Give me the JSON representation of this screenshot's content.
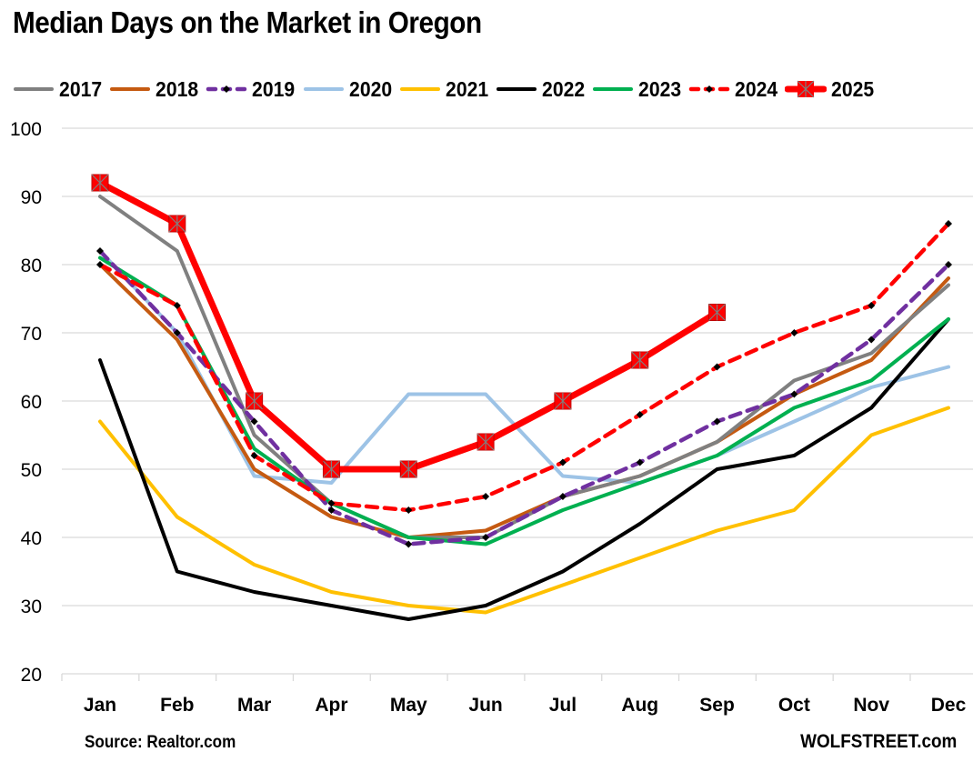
{
  "chart_data": {
    "type": "line",
    "title": "Median Days on the Market in Oregon",
    "xlabel": "",
    "ylabel": "",
    "categories": [
      "Jan",
      "Feb",
      "Mar",
      "Apr",
      "May",
      "Jun",
      "Jul",
      "Aug",
      "Sep",
      "Oct",
      "Nov",
      "Dec"
    ],
    "ylim": [
      20,
      100
    ],
    "yticks": [
      20,
      30,
      40,
      50,
      60,
      70,
      80,
      90,
      100
    ],
    "grid": true,
    "legend_position": "top",
    "series": [
      {
        "name": "2017",
        "color": "#808080",
        "style": "solid",
        "values": [
          90,
          82,
          55,
          45,
          40,
          40,
          46,
          49,
          54,
          63,
          67,
          77
        ]
      },
      {
        "name": "2018",
        "color": "#C55A11",
        "style": "solid",
        "values": [
          80,
          69,
          50,
          43,
          40,
          41,
          46,
          49,
          54,
          61,
          66,
          78
        ]
      },
      {
        "name": "2019",
        "color": "#7030A0",
        "style": "dashed-diamond",
        "values": [
          82,
          70,
          57,
          44,
          39,
          40,
          46,
          51,
          57,
          61,
          69,
          80
        ]
      },
      {
        "name": "2020",
        "color": "#9DC3E6",
        "style": "solid",
        "values": [
          82,
          70,
          49,
          48,
          61,
          61,
          49,
          48,
          52,
          57,
          62,
          65
        ]
      },
      {
        "name": "2021",
        "color": "#FFC000",
        "style": "solid",
        "values": [
          57,
          43,
          36,
          32,
          30,
          29,
          33,
          37,
          41,
          44,
          55,
          59
        ]
      },
      {
        "name": "2022",
        "color": "#000000",
        "style": "solid",
        "values": [
          66,
          35,
          32,
          30,
          28,
          30,
          35,
          42,
          50,
          52,
          59,
          72
        ]
      },
      {
        "name": "2023",
        "color": "#00B050",
        "style": "solid",
        "values": [
          81,
          74,
          53,
          45,
          40,
          39,
          44,
          48,
          52,
          59,
          63,
          72
        ]
      },
      {
        "name": "2024",
        "color": "#FF0000",
        "style": "dashed-diamond",
        "values": [
          80,
          74,
          52,
          45,
          44,
          46,
          51,
          58,
          65,
          70,
          74,
          86
        ]
      },
      {
        "name": "2025",
        "color": "#FF0000",
        "style": "thick-square-marker",
        "values": [
          92,
          86,
          60,
          50,
          50,
          54,
          60,
          66,
          73
        ]
      }
    ]
  },
  "footer": {
    "source": "Source: Realtor.com",
    "brand": "WOLFSTREET.com"
  }
}
